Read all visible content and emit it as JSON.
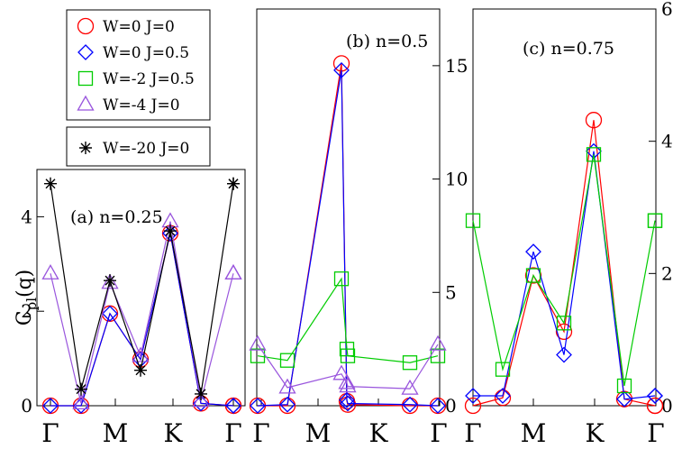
{
  "chart_data": [
    {
      "type": "line",
      "title": "(a) n=0.25",
      "ylabel": "C_pl(q)",
      "x_tick_labels": [
        "Γ",
        "M",
        "K",
        "Γ"
      ],
      "y_axis": "left",
      "ylim": [
        0,
        5.0
      ],
      "y_ticks": [
        0,
        2,
        4
      ],
      "grid": false,
      "series": [
        {
          "name": "W=0 J=0",
          "marker": "circle",
          "color": "#ff0000",
          "x": [
            0,
            1,
            2,
            3,
            4,
            5,
            6,
            7
          ],
          "values": [
            0.0,
            0.0,
            1.95,
            0.98,
            3.65,
            0.05,
            0.0,
            0.0
          ]
        },
        {
          "name": "W=0 J=0.5",
          "marker": "diamond",
          "color": "#0000ff",
          "x": [
            0,
            1,
            2,
            3,
            4,
            5,
            6,
            7
          ],
          "values": [
            0.0,
            0.0,
            1.95,
            0.98,
            3.65,
            0.05,
            0.0,
            0.0
          ]
        },
        {
          "name": "W=-4 J=0",
          "marker": "triangle",
          "color": "#9955dd",
          "x": [
            0,
            1,
            2,
            3,
            4,
            5,
            6,
            7
          ],
          "values": [
            2.8,
            0.05,
            2.6,
            1.05,
            3.9,
            0.1,
            2.8,
            2.8
          ]
        },
        {
          "name": "W=-20 J=0",
          "marker": "star",
          "color": "#000000",
          "x": [
            0,
            1,
            2,
            3,
            4,
            5,
            6,
            7
          ],
          "values": [
            4.7,
            0.35,
            2.65,
            0.75,
            3.7,
            0.25,
            4.7,
            4.7
          ]
        }
      ]
    },
    {
      "type": "line",
      "title": "(b) n=0.5",
      "x_tick_labels": [
        "Γ",
        "M",
        "K",
        "Γ"
      ],
      "y_axis": "right",
      "ylim": [
        0,
        17.5
      ],
      "y_ticks": [
        0,
        5,
        10,
        15
      ],
      "grid": false,
      "series": [
        {
          "name": "W=0 J=0",
          "marker": "circle",
          "color": "#ff0000",
          "x": [
            0,
            1,
            2,
            3,
            4,
            5,
            6
          ],
          "values": [
            0.0,
            0.0,
            15.1,
            0.2,
            0.05,
            0.0,
            0.0
          ]
        },
        {
          "name": "W=0 J=0.5",
          "marker": "diamond",
          "color": "#0000ff",
          "x": [
            0,
            1,
            2,
            3,
            4,
            5,
            6
          ],
          "values": [
            0.0,
            0.05,
            14.8,
            0.25,
            0.1,
            0.05,
            0.0
          ]
        },
        {
          "name": "W=-2 J=0.5",
          "marker": "square",
          "color": "#00cc00",
          "x": [
            0,
            1,
            2,
            3,
            4,
            5,
            6
          ],
          "values": [
            2.2,
            2.0,
            5.6,
            2.5,
            2.2,
            1.9,
            2.2
          ]
        },
        {
          "name": "W=-4 J=0",
          "marker": "triangle",
          "color": "#9955dd",
          "x": [
            0,
            1,
            2,
            3,
            4,
            5,
            6
          ],
          "values": [
            2.7,
            0.8,
            1.4,
            1.0,
            0.85,
            0.75,
            2.7
          ]
        }
      ]
    },
    {
      "type": "line",
      "title": "(c) n=0.75",
      "x_tick_labels": [
        "Γ",
        "M",
        "K",
        "Γ"
      ],
      "y_axis": "right",
      "ylim": [
        0,
        6
      ],
      "y_ticks": [
        0,
        2,
        4,
        6
      ],
      "grid": false,
      "series": [
        {
          "name": "W=0 J=0",
          "marker": "circle",
          "color": "#ff0000",
          "x": [
            0,
            1,
            2,
            3,
            4,
            5,
            6,
            7
          ],
          "values": [
            0.0,
            0.12,
            1.97,
            1.12,
            4.32,
            0.1,
            0.0,
            0.0
          ]
        },
        {
          "name": "W=0 J=0.5",
          "marker": "diamond",
          "color": "#0000ff",
          "x": [
            0,
            1,
            2,
            3,
            4,
            5,
            6,
            7
          ],
          "values": [
            0.15,
            0.15,
            2.33,
            0.77,
            3.85,
            0.1,
            0.15,
            0.15
          ]
        },
        {
          "name": "W=-2 J=0.5",
          "marker": "square",
          "color": "#00cc00",
          "x": [
            0,
            1,
            2,
            3,
            4,
            5,
            6,
            7
          ],
          "values": [
            2.8,
            0.55,
            1.97,
            1.25,
            3.8,
            0.3,
            2.8,
            2.8
          ]
        }
      ]
    }
  ],
  "legend": {
    "entries": [
      {
        "label": "W=0 J=0",
        "marker": "circle",
        "color": "#ff0000"
      },
      {
        "label": "W=0 J=0.5",
        "marker": "diamond",
        "color": "#0000ff"
      },
      {
        "label": "W=-2 J=0.5",
        "marker": "square",
        "color": "#00cc00"
      },
      {
        "label": "W=-4 J=0",
        "marker": "triangle",
        "color": "#9955dd"
      }
    ],
    "extra": {
      "label": "W=-20 J=0",
      "marker": "star",
      "color": "#000000"
    }
  }
}
